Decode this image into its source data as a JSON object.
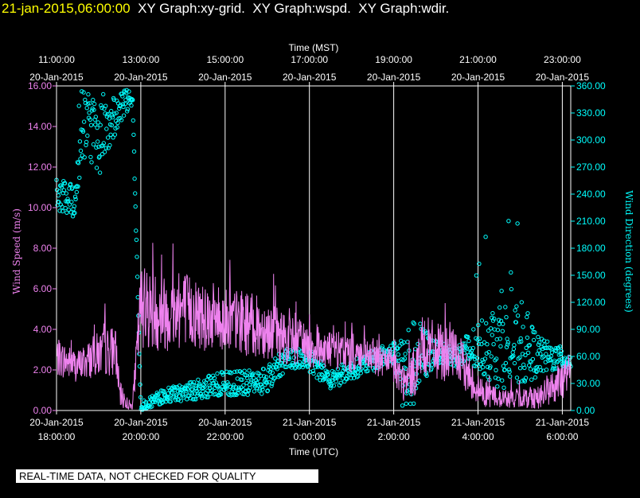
{
  "header": {
    "date": "21-jan-2015,06:00:00",
    "rest": "  XY Graph:xy-grid.  XY Graph:wspd.  XY Graph:wdir."
  },
  "footer_note": "REAL-TIME DATA, NOT CHECKED FOR QUALITY",
  "colors": {
    "speed": "#ee82ee",
    "direction": "#00ffff",
    "grid": "#ffffff",
    "background": "#000000"
  },
  "chart_data": {
    "type": "scatter",
    "top_axis": {
      "title": "Time (MST)",
      "ticks": [
        {
          "time": "11:00:00",
          "date": "20-Jan-2015"
        },
        {
          "time": "13:00:00",
          "date": "20-Jan-2015"
        },
        {
          "time": "15:00:00",
          "date": "20-Jan-2015"
        },
        {
          "time": "17:00:00",
          "date": "20-Jan-2015"
        },
        {
          "time": "19:00:00",
          "date": "20-Jan-2015"
        },
        {
          "time": "21:00:00",
          "date": "20-Jan-2015"
        },
        {
          "time": "23:00:00",
          "date": "20-Jan-2015"
        }
      ]
    },
    "bottom_axis": {
      "title": "Time (UTC)",
      "ticks": [
        {
          "date": "20-Jan-2015",
          "time": "18:00:00"
        },
        {
          "date": "20-Jan-2015",
          "time": "20:00:00"
        },
        {
          "date": "20-Jan-2015",
          "time": "22:00:00"
        },
        {
          "date": "21-Jan-2015",
          "time": "0:00:00"
        },
        {
          "date": "21-Jan-2015",
          "time": "2:00:00"
        },
        {
          "date": "21-Jan-2015",
          "time": "4:00:00"
        },
        {
          "date": "21-Jan-2015",
          "time": "6:00:00"
        }
      ]
    },
    "x_range_utc_hours": [
      18,
      30.2
    ],
    "left_axis": {
      "title": "Wind Speed (m/s)",
      "range": [
        0,
        16
      ],
      "ticks": [
        "0.00",
        "2.00",
        "4.00",
        "6.00",
        "8.00",
        "10.00",
        "12.00",
        "14.00",
        "16.00"
      ]
    },
    "right_axis": {
      "title": "Wind Direction (degrees)",
      "range": [
        0,
        360
      ],
      "ticks": [
        "0.00",
        "30.00",
        "60.00",
        "90.00",
        "120.00",
        "150.00",
        "180.00",
        "210.00",
        "240.00",
        "270.00",
        "300.00",
        "330.00",
        "360.00"
      ]
    },
    "grid": "vertical lines at bottom-axis ticks",
    "series": [
      {
        "name": "wspd",
        "axis": "left",
        "style": "line",
        "x_utc_hours": [
          18.0,
          18.5,
          19.0,
          19.4,
          19.5,
          19.7,
          19.8,
          20.0,
          20.5,
          21.0,
          21.5,
          22.0,
          22.5,
          23.0,
          23.5,
          24.0,
          24.5,
          25.0,
          25.5,
          26.0,
          26.3,
          26.5,
          26.7,
          27.0,
          27.5,
          28.0,
          28.5,
          29.0,
          29.5,
          30.0,
          30.2
        ],
        "values": [
          2.6,
          2.2,
          2.8,
          3.0,
          0.8,
          0.3,
          0.2,
          5.2,
          4.8,
          5.0,
          4.7,
          4.5,
          4.3,
          4.0,
          3.5,
          3.2,
          3.0,
          2.8,
          2.6,
          2.2,
          1.2,
          2.0,
          3.2,
          2.9,
          2.7,
          1.0,
          0.6,
          0.6,
          0.7,
          1.5,
          2.0
        ],
        "spread": [
          0.6,
          0.5,
          0.7,
          0.8,
          0.4,
          0.2,
          0.1,
          1.3,
          1.2,
          1.2,
          1.1,
          1.0,
          1.0,
          0.9,
          0.8,
          0.7,
          0.6,
          0.6,
          0.5,
          0.6,
          0.6,
          0.8,
          1.0,
          0.9,
          0.8,
          0.5,
          0.3,
          0.3,
          0.4,
          0.6,
          0.6
        ]
      },
      {
        "name": "wdir",
        "axis": "right",
        "style": "points",
        "x_utc_hours": [
          18.0,
          18.4,
          18.7,
          19.0,
          19.3,
          19.6,
          19.8,
          20.0,
          20.5,
          21.0,
          21.5,
          22.0,
          22.5,
          23.0,
          23.5,
          24.0,
          24.5,
          25.0,
          25.5,
          26.0,
          26.3,
          26.6,
          27.0,
          27.5,
          28.0,
          28.5,
          29.0,
          29.5,
          30.0,
          30.2
        ],
        "values": [
          240,
          230,
          320,
          300,
          320,
          340,
          350,
          5,
          15,
          20,
          25,
          30,
          30,
          35,
          60,
          55,
          35,
          45,
          55,
          65,
          40,
          60,
          65,
          60,
          70,
          75,
          70,
          60,
          58,
          55
        ],
        "spread": [
          18,
          20,
          35,
          40,
          25,
          15,
          10,
          5,
          8,
          10,
          12,
          14,
          14,
          16,
          12,
          12,
          12,
          10,
          12,
          12,
          60,
          40,
          12,
          12,
          30,
          50,
          45,
          20,
          12,
          10
        ]
      }
    ]
  }
}
